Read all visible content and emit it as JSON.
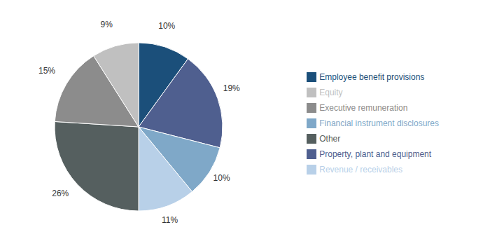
{
  "chart_data": {
    "type": "pie",
    "categories": [
      "Employee benefit provisions",
      "Property, plant and equipment",
      "Financial instrument disclosures",
      "Revenue / receivables",
      "Other",
      "Executive remuneration",
      "Equity"
    ],
    "values": [
      10,
      19,
      10,
      11,
      26,
      15,
      9
    ],
    "value_labels": [
      "10%",
      "19%",
      "10%",
      "11%",
      "26%",
      "15%",
      "9%"
    ],
    "colors": [
      "#1B4F7A",
      "#4F5F8F",
      "#7FA8C8",
      "#B8D0E8",
      "#555F5F",
      "#8C8C8C",
      "#C0C0C0"
    ],
    "data_labels": true,
    "legend": "right"
  }
}
